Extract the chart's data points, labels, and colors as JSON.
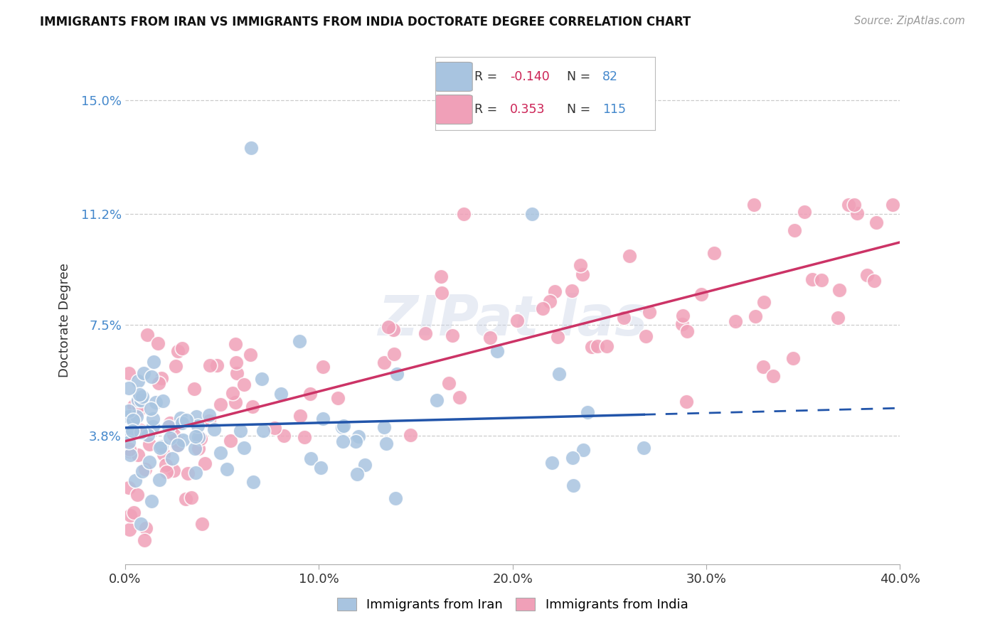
{
  "title": "IMMIGRANTS FROM IRAN VS IMMIGRANTS FROM INDIA DOCTORATE DEGREE CORRELATION CHART",
  "source": "Source: ZipAtlas.com",
  "ylabel": "Doctorate Degree",
  "xlim": [
    0.0,
    0.4
  ],
  "ylim": [
    -0.005,
    0.158
  ],
  "yticks": [
    0.038,
    0.075,
    0.112,
    0.15
  ],
  "ytick_labels": [
    "3.8%",
    "7.5%",
    "11.2%",
    "15.0%"
  ],
  "xticks": [
    0.0,
    0.1,
    0.2,
    0.3,
    0.4
  ],
  "xtick_labels": [
    "0.0%",
    "10.0%",
    "20.0%",
    "30.0%",
    "40.0%"
  ],
  "iran_color": "#a8c4e0",
  "india_color": "#f0a0b8",
  "trend_iran_color": "#2255aa",
  "trend_india_color": "#cc3366",
  "background_color": "#ffffff",
  "grid_color": "#cccccc",
  "iran_R": -0.14,
  "iran_N": 82,
  "india_R": 0.353,
  "india_N": 115,
  "ytick_color": "#4488cc",
  "legend_R_color": "#cc2255",
  "legend_N_color": "#4488cc"
}
